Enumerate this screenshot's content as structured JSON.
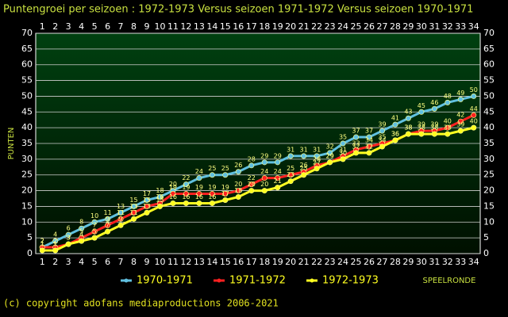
{
  "chart_data": {
    "type": "line",
    "title": "Puntengroei per seizoen : 1972-1973 Versus seizoen 1971-1972 Versus seizoen 1970-1971",
    "y_label": "PUNTEN",
    "x_label": "SPEELRONDE",
    "footer": "(c) copyright adofans mediaproductions 2006-2021",
    "categories": [
      "1",
      "2",
      "3",
      "4",
      "5",
      "6",
      "7",
      "8",
      "9",
      "10",
      "11",
      "12",
      "13",
      "14",
      "15",
      "16",
      "17",
      "18",
      "19",
      "20",
      "21",
      "22",
      "23",
      "24",
      "25",
      "26",
      "27",
      "28",
      "29",
      "30",
      "31",
      "32",
      "33",
      "34"
    ],
    "series": [
      {
        "name": "1970-1971",
        "color": "#60c0e0",
        "values": [
          2,
          4,
          6,
          8,
          10,
          11,
          13,
          15,
          17,
          18,
          20,
          22,
          24,
          25,
          25,
          26,
          28,
          29,
          29,
          31,
          31,
          31,
          32,
          35,
          37,
          37,
          39,
          41,
          43,
          45,
          46,
          48,
          49,
          50
        ]
      },
      {
        "name": "1971-1972",
        "color": "#ff2020",
        "values": [
          2,
          2,
          3,
          5,
          7,
          9,
          11,
          13,
          15,
          16,
          19,
          19,
          19,
          19,
          19,
          20,
          22,
          24,
          24,
          25,
          26,
          28,
          29,
          31,
          33,
          34,
          35,
          36,
          38,
          39,
          39,
          40,
          42,
          44
        ]
      },
      {
        "name": "1972-1973",
        "color": "#ffff20",
        "values": [
          1,
          1,
          3,
          4,
          5,
          7,
          9,
          11,
          13,
          15,
          16,
          16,
          16,
          16,
          17,
          18,
          20,
          20,
          21,
          23,
          25,
          27,
          29,
          30,
          32,
          32,
          34,
          36,
          38,
          38,
          38,
          38,
          39,
          40
        ]
      }
    ],
    "ylim": [
      0,
      70
    ],
    "yticks": [
      0,
      5,
      10,
      15,
      20,
      25,
      30,
      35,
      40,
      45,
      50,
      55,
      60,
      65,
      70
    ],
    "grid": true
  }
}
